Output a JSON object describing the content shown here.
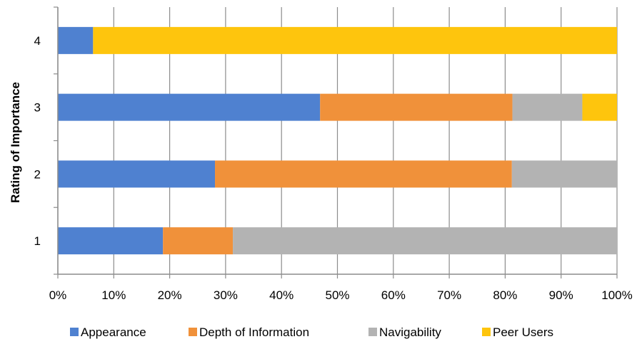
{
  "chart_data": {
    "type": "bar",
    "orientation": "horizontal",
    "stacking": "percent",
    "categories": [
      "1",
      "2",
      "3",
      "4"
    ],
    "series": [
      {
        "name": "Appearance",
        "values": [
          18.8,
          28.1,
          46.9,
          6.3
        ],
        "color": "#4F81D0"
      },
      {
        "name": "Depth of Information",
        "values": [
          12.5,
          53.1,
          34.4,
          0
        ],
        "color": "#F0913A"
      },
      {
        "name": "Navigability",
        "values": [
          68.7,
          18.8,
          12.5,
          0
        ],
        "color": "#B3B3B3"
      },
      {
        "name": "Peer Users",
        "values": [
          0,
          0,
          6.2,
          93.7
        ],
        "color": "#FEC50D"
      }
    ],
    "title": "",
    "xlabel": "",
    "ylabel": "Rating of Importance",
    "xlim": [
      0,
      100
    ],
    "x_ticks": [
      "0%",
      "10%",
      "20%",
      "30%",
      "40%",
      "50%",
      "60%",
      "70%",
      "80%",
      "90%",
      "100%"
    ],
    "grid": true,
    "legend_position": "bottom"
  }
}
